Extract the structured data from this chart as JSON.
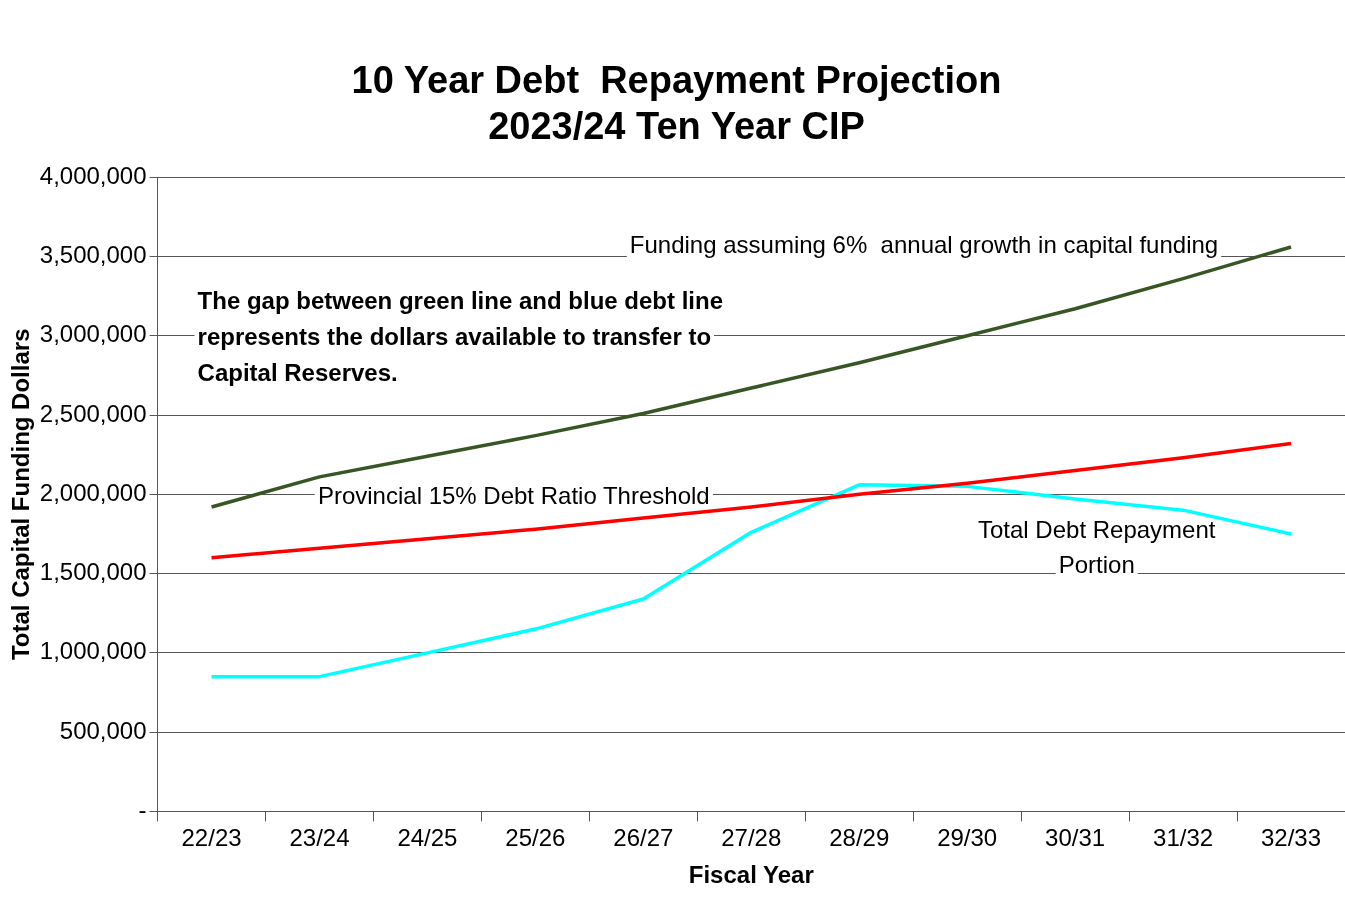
{
  "chart_data": {
    "type": "line",
    "title": "10 Year Debt  Repayment Projection\n2023/24 Ten Year CIP",
    "xlabel": "Fiscal Year",
    "ylabel": "Total Capital Funding Dollars",
    "categories": [
      "22/23",
      "23/24",
      "24/25",
      "25/26",
      "26/27",
      "27/28",
      "28/29",
      "29/30",
      "30/31",
      "31/32",
      "32/33"
    ],
    "series": [
      {
        "name": "Funding assuming 6%  annual growth in capital funding",
        "color": "#375623",
        "values": [
          1920000,
          2110000,
          2240000,
          2370000,
          2510000,
          2670000,
          2830000,
          3000000,
          3170000,
          3360000,
          3560000
        ]
      },
      {
        "name": "Provincial 15% Debt Ratio Threshold",
        "color": "#ff0000",
        "values": [
          1600000,
          1660000,
          1720000,
          1780000,
          1850000,
          1920000,
          2000000,
          2070000,
          2150000,
          2230000,
          2320000
        ]
      },
      {
        "name": "Total Debt Repayment Portion",
        "color": "#00ffff",
        "values": [
          850000,
          850000,
          1000000,
          1150000,
          1340000,
          1760000,
          2060000,
          2050000,
          1970000,
          1900000,
          1750000
        ]
      }
    ],
    "annotations": [
      "The gap between green line and blue debt line represents the dollars available to transfer to Capital Reserves."
    ],
    "ylim": [
      0,
      4000000
    ],
    "yticks": [
      {
        "value": 0,
        "label": "-"
      },
      {
        "value": 500000,
        "label": "500,000"
      },
      {
        "value": 1000000,
        "label": "1,000,000"
      },
      {
        "value": 1500000,
        "label": "1,500,000"
      },
      {
        "value": 2000000,
        "label": "2,000,000"
      },
      {
        "value": 2500000,
        "label": "2,500,000"
      },
      {
        "value": 3000000,
        "label": "3,000,000"
      },
      {
        "value": 3500000,
        "label": "3,500,000"
      },
      {
        "value": 4000000,
        "label": "4,000,000"
      }
    ],
    "grid": "y",
    "legend": false,
    "marker": "none",
    "line_style": "solid"
  }
}
